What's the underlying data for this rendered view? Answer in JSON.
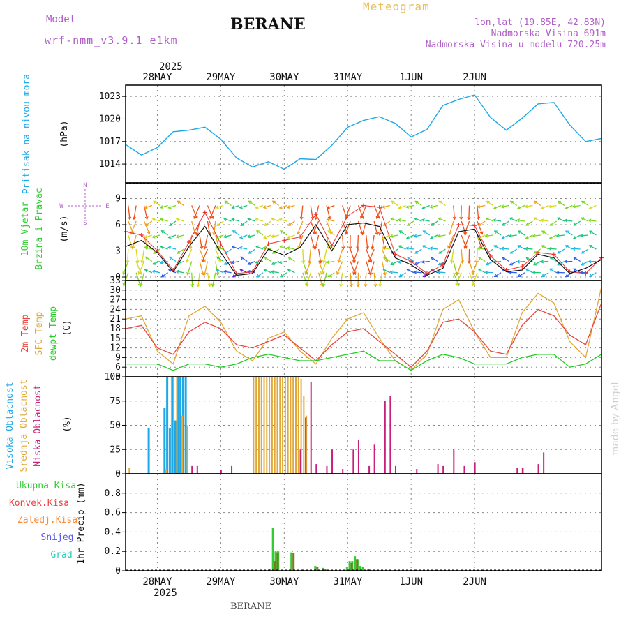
{
  "header": {
    "model_label": "Model",
    "model_name": "wrf-nmm_v3.9.1 e1km",
    "title": "BERANE",
    "product": "Meteogram",
    "lonlat": "lon,lat (19.85E, 42.83N)",
    "elevation": "Nadmorska Visina 691m",
    "model_elevation": "Nadmorska Visina u modelu 720.25m",
    "footer_station": "BERANE",
    "watermark": "made by Angel"
  },
  "colors": {
    "pressure": "#1ea8e8",
    "temp2m": "#e8463c",
    "sfc": "#e0a838",
    "dew": "#22cc22",
    "high": "#1ea8e8",
    "mid": "#e0a838",
    "low": "#c8207a",
    "total": "#33cc33",
    "conv": "#ee4444",
    "frozen": "#ff8833",
    "snow": "#5555ee",
    "graupel": "#22ccbb",
    "model": "#b060c8",
    "product": "#e8c060"
  },
  "chart_data": [
    {
      "type": "line",
      "panel": "pressure",
      "ylabel_main": "Pritisak na nivou mora",
      "ylabel_unit": "(hPa)",
      "x_dates": [
        "28MAY",
        "29MAY",
        "30MAY",
        "31MAY",
        "1JUN",
        "2JUN"
      ],
      "top_year": "2025",
      "bottom_year": "2025",
      "ylim": [
        1011.5,
        1024.5
      ],
      "yticks": [
        1014,
        1017,
        1020,
        1023
      ],
      "x_hours": [
        0,
        6,
        12,
        18,
        24,
        30,
        36,
        42,
        48,
        54,
        60,
        66,
        72,
        78,
        84,
        90,
        96,
        102,
        108,
        114,
        120,
        126,
        132,
        138,
        144,
        150,
        156,
        162,
        168,
        174,
        180
      ],
      "series": [
        {
          "key": "pressure",
          "values": [
            1016.6,
            1015.2,
            1016.2,
            1018.3,
            1018.5,
            1018.9,
            1017.3,
            1014.8,
            1013.6,
            1014.3,
            1013.3,
            1014.7,
            1014.6,
            1016.5,
            1018.9,
            1019.8,
            1020.3,
            1019.4,
            1017.6,
            1018.6,
            1021.8,
            1022.6,
            1023.2,
            1020.2,
            1018.5,
            1020.1,
            1022.0,
            1022.2,
            1019.2,
            1017.0,
            1017.4
          ]
        }
      ]
    },
    {
      "type": "line",
      "panel": "wind",
      "ylabel_main": "10m Vjetar",
      "ylabel_sub": "Brzina i Pravac",
      "ylabel_unit": "(m/s)",
      "compass_n": "N",
      "compass_s": "S",
      "compass_e": "E",
      "compass_w": "W",
      "ylim": [
        -0.4,
        10.8
      ],
      "yticks": [
        0,
        3,
        6,
        9
      ],
      "x_hours": [
        0,
        6,
        12,
        18,
        24,
        30,
        36,
        42,
        48,
        54,
        60,
        66,
        72,
        78,
        84,
        90,
        96,
        102,
        108,
        114,
        120,
        126,
        132,
        138,
        144,
        150,
        156,
        162,
        168,
        174,
        180
      ],
      "series": [
        {
          "key": "speed",
          "values": [
            3.5,
            4.2,
            2.8,
            0.6,
            3.5,
            5.8,
            2.8,
            0.2,
            0.4,
            3.2,
            2.5,
            3.4,
            6.0,
            3.0,
            6.0,
            6.2,
            5.8,
            2.2,
            1.4,
            0.2,
            1.0,
            5.2,
            5.5,
            2.0,
            0.6,
            0.8,
            2.6,
            2.2,
            0.4,
            1.0,
            2.0
          ]
        },
        {
          "key": "gust",
          "values": [
            5.2,
            4.8,
            3.0,
            0.8,
            4.0,
            7.4,
            3.8,
            0.4,
            0.6,
            3.8,
            4.2,
            4.6,
            7.2,
            3.6,
            7.0,
            8.2,
            8.0,
            2.6,
            1.8,
            0.4,
            1.4,
            6.0,
            5.9,
            2.4,
            0.8,
            1.2,
            2.8,
            2.6,
            0.6,
            0.4,
            2.2
          ]
        }
      ]
    },
    {
      "type": "line",
      "panel": "temperature",
      "ylabel_t2m": "2m Temp",
      "ylabel_sfc": "SFC Temp",
      "ylabel_dew": "dewpt Temp",
      "ylabel_unit": "(C)",
      "ylim": [
        3,
        33
      ],
      "yticks": [
        3,
        6,
        9,
        12,
        15,
        18,
        21,
        24,
        27,
        30,
        33
      ],
      "x_hours": [
        0,
        6,
        12,
        18,
        24,
        30,
        36,
        42,
        48,
        54,
        60,
        66,
        72,
        78,
        84,
        90,
        96,
        102,
        108,
        114,
        120,
        126,
        132,
        138,
        144,
        150,
        156,
        162,
        168,
        174,
        180
      ],
      "series": [
        {
          "key": "temp2m",
          "values": [
            18,
            19,
            12,
            10,
            17,
            20,
            18,
            13,
            12,
            14,
            16,
            12,
            8,
            13,
            17,
            18,
            14,
            10,
            6,
            11,
            20,
            21,
            17,
            11,
            10,
            19,
            24,
            22,
            16,
            13,
            26
          ]
        },
        {
          "key": "sfc",
          "values": [
            21,
            22,
            11,
            7,
            22,
            25,
            20,
            11,
            8,
            15,
            17,
            11,
            7,
            15,
            21,
            23,
            15,
            8,
            5,
            10,
            24,
            27,
            17,
            9,
            9,
            23,
            29,
            26,
            14,
            9,
            31
          ]
        },
        {
          "key": "dew",
          "values": [
            7,
            7,
            7,
            5,
            7,
            7,
            6,
            7,
            9,
            10,
            9,
            8,
            8,
            9,
            10,
            11,
            8,
            8,
            5,
            8,
            10,
            9,
            7,
            7,
            7,
            9,
            10,
            10,
            6,
            7,
            10
          ]
        }
      ]
    },
    {
      "type": "bar",
      "panel": "clouds",
      "ylabel_high": "Visoka Oblacnost",
      "ylabel_mid": "Srednja Oblacnost",
      "ylabel_low": "Niska Oblacnost",
      "ylabel_unit": "(%)",
      "ylim": [
        0,
        100
      ],
      "yticks": [
        0,
        25,
        50,
        75,
        100
      ],
      "series": [
        {
          "key": "high",
          "x_hours": [
            9,
            15,
            16,
            17,
            18,
            19,
            20,
            21,
            22,
            23
          ],
          "values": [
            47,
            68,
            100,
            47,
            100,
            55,
            100,
            100,
            100,
            100
          ]
        },
        {
          "key": "mid",
          "x_hours": [
            1,
            15,
            17,
            19,
            21,
            23,
            48,
            49,
            50,
            51,
            52,
            53,
            54,
            55,
            56,
            57,
            58,
            59,
            60,
            61,
            62,
            63,
            64,
            65,
            66,
            67,
            68,
            150
          ],
          "values": [
            6,
            5,
            100,
            100,
            60,
            50,
            100,
            100,
            100,
            100,
            100,
            100,
            100,
            100,
            100,
            100,
            100,
            100,
            100,
            100,
            100,
            100,
            100,
            100,
            98,
            80,
            60,
            6
          ]
        },
        {
          "key": "low",
          "x_hours": [
            25,
            27,
            36,
            40,
            66,
            68,
            70,
            72,
            76,
            78,
            82,
            86,
            88,
            92,
            94,
            98,
            100,
            102,
            110,
            118,
            120,
            124,
            128,
            132,
            148,
            150,
            156,
            158
          ],
          "values": [
            8,
            8,
            4,
            8,
            25,
            58,
            95,
            10,
            8,
            25,
            5,
            25,
            35,
            8,
            30,
            75,
            80,
            8,
            5,
            10,
            8,
            25,
            8,
            12,
            6,
            6,
            10,
            22
          ]
        }
      ]
    },
    {
      "type": "bar",
      "panel": "precip",
      "ylabel_total": "Ukupna Kisa",
      "ylabel_conv": "Konvek.Kisa",
      "ylabel_frozen": "Zaledj.Kisa",
      "ylabel_snow": "Snijeg",
      "ylabel_graupel": "Grad",
      "ylabel_unit": "1hr Precip (mm)",
      "ylim": [
        0,
        1.0
      ],
      "yticks": [
        0,
        0.2,
        0.4,
        0.6,
        0.8
      ],
      "series": [
        {
          "key": "total",
          "x_hours": [
            55,
            56,
            57,
            58,
            63,
            72,
            75,
            84,
            85,
            86,
            87,
            88,
            89,
            90,
            92
          ],
          "values": [
            0.02,
            0.44,
            0.2,
            0.2,
            0.19,
            0.05,
            0.03,
            0.04,
            0.1,
            0.1,
            0.15,
            0.12,
            0.05,
            0.04,
            0.02
          ]
        },
        {
          "key": "conv",
          "x_hours": [
            56,
            57,
            63,
            72,
            75,
            85,
            87
          ],
          "values": [
            0.1,
            0.19,
            0.18,
            0.04,
            0.02,
            0.08,
            0.12
          ]
        }
      ]
    }
  ]
}
